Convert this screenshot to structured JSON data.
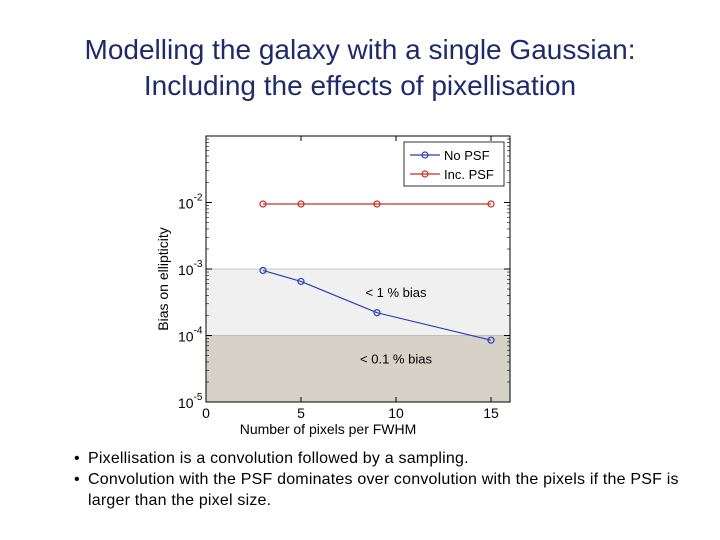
{
  "slide": {
    "title_line1": "Modelling the galaxy with a single Gaussian:",
    "title_line2": "Including the effects of pixellisation",
    "bullets": [
      "Pixellisation is a convolution followed by a sampling.",
      "Convolution with the PSF dominates over convolution with the pixels if the PSF is larger than the pixel size."
    ],
    "colors": {
      "title": "#1f2a6b"
    }
  },
  "chart_data": {
    "type": "line",
    "xlabel": "Number of pixels per FWHM",
    "ylabel": "Bias on ellipticity",
    "xlim": [
      0,
      16
    ],
    "ylim": [
      1e-05,
      0.1
    ],
    "yscale": "log",
    "xticks": [
      0,
      5,
      10,
      15
    ],
    "yticks": [
      {
        "value": 0.01,
        "base": "10",
        "exp": "-2"
      },
      {
        "value": 0.001,
        "base": "10",
        "exp": "-3"
      },
      {
        "value": 0.0001,
        "base": "10",
        "exp": "-4"
      },
      {
        "value": 1e-05,
        "base": "10",
        "exp": "-5"
      }
    ],
    "grid": false,
    "legend_position": "top-right",
    "series": [
      {
        "name": "No PSF",
        "color": "#2b3fb8",
        "x": [
          3,
          5,
          9,
          15
        ],
        "y": [
          0.00095,
          0.00065,
          0.00022,
          8.5e-05
        ]
      },
      {
        "name": "Inc. PSF",
        "color": "#c43028",
        "x": [
          3,
          5,
          9,
          15
        ],
        "y": [
          0.0095,
          0.0095,
          0.0095,
          0.0095
        ]
      }
    ],
    "bands": [
      {
        "from": 0.0001,
        "to": 0.001,
        "color": "#f0f0f0",
        "label": "< 1 % bias",
        "label_x": 10,
        "label_y": 0.00045
      },
      {
        "from": 1e-05,
        "to": 0.0001,
        "color": "#d6d2c8",
        "label": "< 0.1 % bias",
        "label_x": 10,
        "label_y": 4.5e-05
      }
    ]
  }
}
